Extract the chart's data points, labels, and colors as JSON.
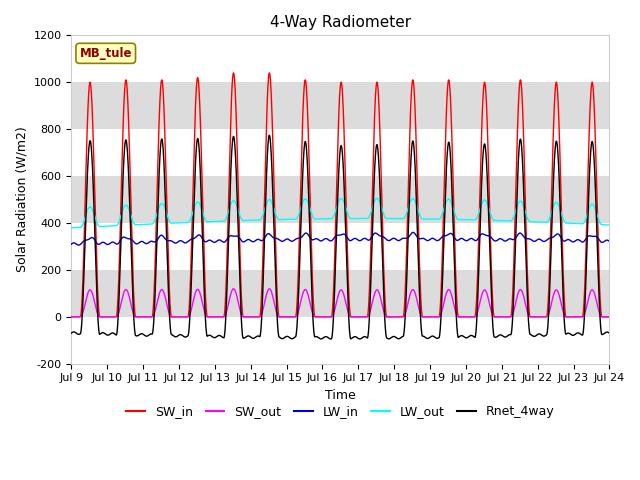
{
  "title": "4-Way Radiometer",
  "xlabel": "Time",
  "ylabel": "Solar Radiation (W/m2)",
  "ylim": [
    -200,
    1200
  ],
  "station_label": "MB_tule",
  "xtick_labels": [
    "Jul 9",
    "Jul 10",
    "Jul 11",
    "Jul 12",
    "Jul 13",
    "Jul 14",
    "Jul 15",
    "Jul 16",
    "Jul 17",
    "Jul 18",
    "Jul 19",
    "Jul 20",
    "Jul 21",
    "Jul 22",
    "Jul 23",
    "Jul 24"
  ],
  "series": {
    "SW_in": {
      "color": "#FF0000",
      "lw": 1.0
    },
    "SW_out": {
      "color": "#FF00FF",
      "lw": 1.0
    },
    "LW_in": {
      "color": "#0000CC",
      "lw": 1.0
    },
    "LW_out": {
      "color": "#00FFFF",
      "lw": 1.0
    },
    "Rnet_4way": {
      "color": "#000000",
      "lw": 1.0
    }
  },
  "background_color": "#FFFFFF",
  "plot_bg_color": "#FFFFFF",
  "band_colors": [
    "#FFFFFF",
    "#DCDCDC"
  ],
  "grid_color": "#FFFFFF",
  "title_fontsize": 11,
  "label_fontsize": 9,
  "tick_fontsize": 8,
  "legend_fontsize": 9
}
